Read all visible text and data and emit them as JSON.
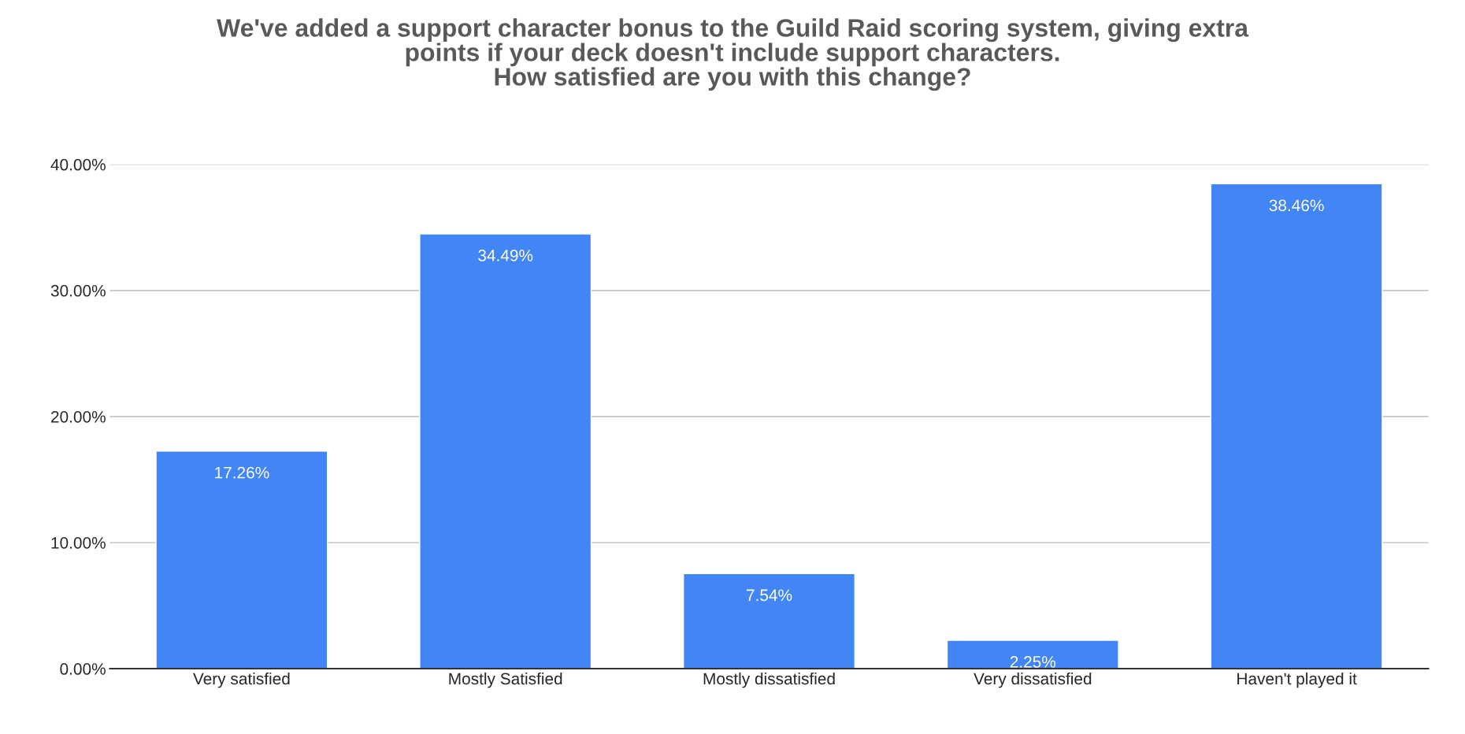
{
  "chart_data": {
    "type": "bar",
    "title": "We've added a support character bonus to the Guild Raid scoring system, giving extra\npoints if your deck doesn't include support characters.\nHow satisfied are you with this change?",
    "categories": [
      "Very satisfied",
      "Mostly Satisfied",
      "Mostly dissatisfied",
      "Very dissatisfied",
      "Haven't played it"
    ],
    "values": [
      17.26,
      34.49,
      7.54,
      2.25,
      38.46
    ],
    "value_labels": [
      "17.26%",
      "34.49%",
      "7.54%",
      "2.25%",
      "38.46%"
    ],
    "color": "#4285f4",
    "ylim": [
      0,
      40
    ],
    "yticks": [
      {
        "value": 0,
        "label": "0.00%"
      },
      {
        "value": 10,
        "label": "10.00%"
      },
      {
        "value": 20,
        "label": "20.00%"
      },
      {
        "value": 30,
        "label": "30.00%"
      },
      {
        "value": 40,
        "label": "40.00%"
      }
    ],
    "grid": "y"
  }
}
